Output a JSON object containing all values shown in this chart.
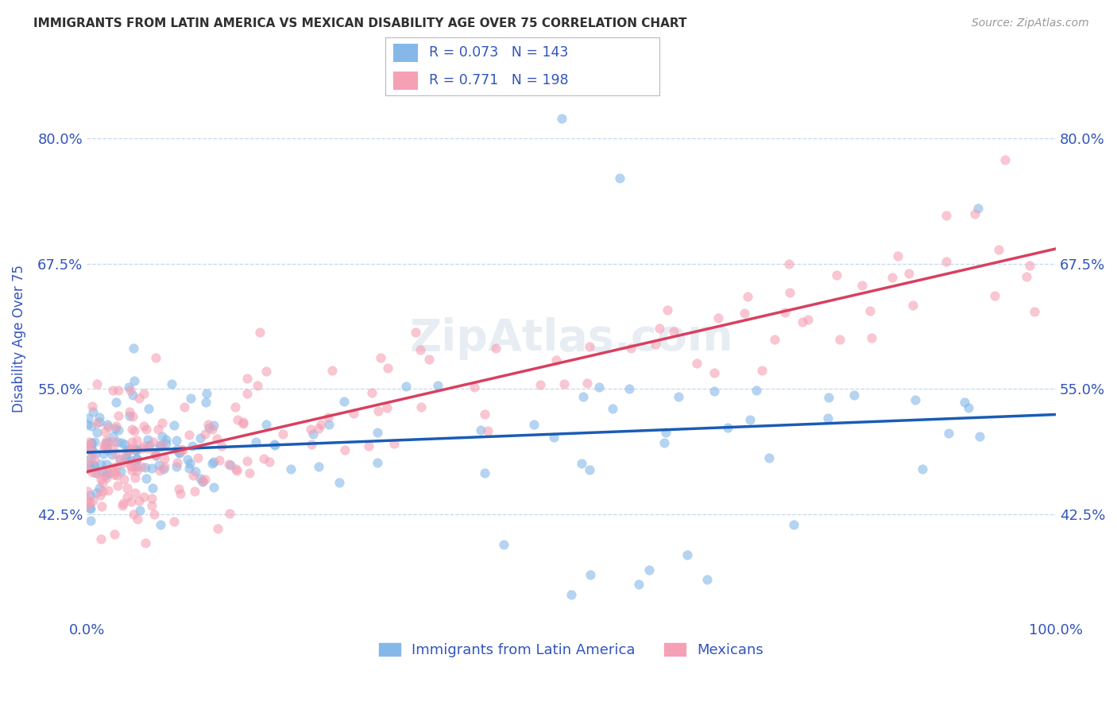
{
  "title": "IMMIGRANTS FROM LATIN AMERICA VS MEXICAN DISABILITY AGE OVER 75 CORRELATION CHART",
  "source": "Source: ZipAtlas.com",
  "ylabel": "Disability Age Over 75",
  "series1_label": "Immigrants from Latin America",
  "series2_label": "Mexicans",
  "series1_R": 0.073,
  "series1_N": 143,
  "series2_R": 0.771,
  "series2_N": 198,
  "series1_color": "#85b8e8",
  "series2_color": "#f5a0b5",
  "series1_line_color": "#1a5cb5",
  "series2_line_color": "#d84060",
  "legend_text_color": "#3355bb",
  "title_color": "#303030",
  "axis_label_color": "#3355bb",
  "tick_label_color": "#3355bb",
  "grid_color": "#c5d8ee",
  "background_color": "#ffffff",
  "xlim": [
    0.0,
    1.0
  ],
  "ylim": [
    0.32,
    0.88
  ],
  "yticks": [
    0.425,
    0.55,
    0.675,
    0.8
  ],
  "ytick_labels": [
    "42.5%",
    "55.0%",
    "67.5%",
    "80.0%"
  ],
  "watermark": "ZipAtlas.com",
  "seed": 17
}
